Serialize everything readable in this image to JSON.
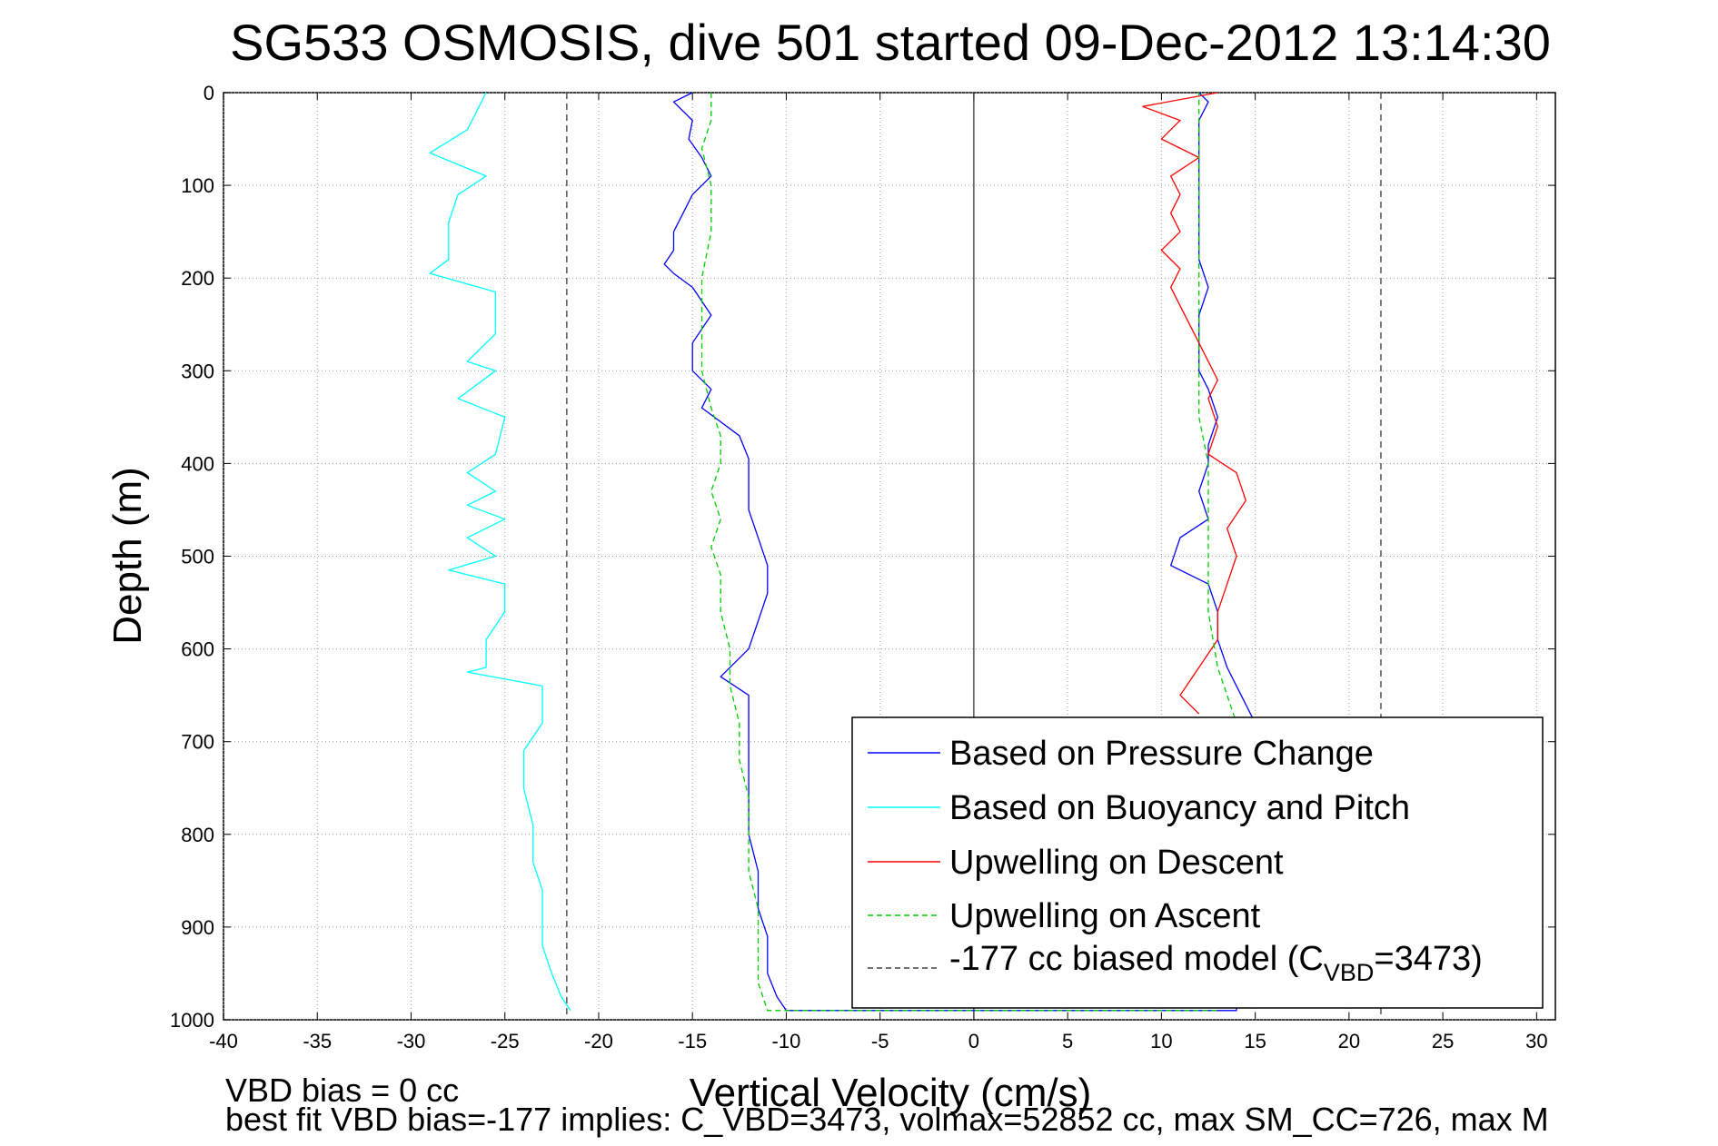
{
  "chart_data": {
    "type": "line",
    "title": "SG533 OSMOSIS, dive 501 started 09-Dec-2012 13:14:30",
    "xlabel": "Vertical Velocity (cm/s)",
    "ylabel": "Depth (m)",
    "xlim": [
      -40,
      31
    ],
    "ylim": [
      0,
      1000
    ],
    "y_reversed": true,
    "grid": true,
    "x_ticks": [
      -40,
      -35,
      -30,
      -25,
      -20,
      -15,
      -10,
      -5,
      0,
      5,
      10,
      15,
      20,
      25,
      30
    ],
    "y_ticks": [
      0,
      100,
      200,
      300,
      400,
      500,
      600,
      700,
      800,
      900,
      1000
    ],
    "legend_position": "lower-right",
    "legend": {
      "pressure": "Based on Pressure Change",
      "buoyancy": "Based on Buoyancy and Pitch",
      "descent": "Upwelling on Descent",
      "ascent": "Upwelling on Ascent",
      "model_prefix": "-177 cc biased model (C",
      "model_sub": "VBD",
      "model_suffix": "=3473)"
    },
    "reference_lines": {
      "zero_line_x": 0,
      "biased_model_x": [
        -21.7,
        21.7
      ]
    },
    "series": [
      {
        "key": "pressure",
        "color": "#0000ff",
        "dash": "",
        "points": [
          [
            -15.0,
            0
          ],
          [
            -16.0,
            10
          ],
          [
            -15.0,
            30
          ],
          [
            -15.2,
            50
          ],
          [
            -14.5,
            70
          ],
          [
            -14.0,
            90
          ],
          [
            -15.0,
            110
          ],
          [
            -15.5,
            130
          ],
          [
            -16.0,
            150
          ],
          [
            -16.0,
            170
          ],
          [
            -16.5,
            185
          ],
          [
            -16.0,
            195
          ],
          [
            -15.0,
            210
          ],
          [
            -14.0,
            240
          ],
          [
            -15.0,
            270
          ],
          [
            -15.0,
            300
          ],
          [
            -14.0,
            320
          ],
          [
            -14.5,
            340
          ],
          [
            -12.5,
            370
          ],
          [
            -12.0,
            395
          ],
          [
            -12.0,
            420
          ],
          [
            -12.0,
            450
          ],
          [
            -11.5,
            480
          ],
          [
            -11.0,
            510
          ],
          [
            -11.0,
            540
          ],
          [
            -11.5,
            570
          ],
          [
            -12.0,
            600
          ],
          [
            -13.5,
            630
          ],
          [
            -12.0,
            650
          ],
          [
            -12.0,
            680
          ],
          [
            -12.0,
            720
          ],
          [
            -12.0,
            760
          ],
          [
            -12.0,
            800
          ],
          [
            -11.5,
            840
          ],
          [
            -11.5,
            880
          ],
          [
            -11.0,
            910
          ],
          [
            -11.0,
            950
          ],
          [
            -10.5,
            975
          ],
          [
            -10.0,
            990
          ],
          [
            14.0,
            990
          ],
          [
            15.0,
            680
          ],
          [
            13.5,
            620
          ],
          [
            13.0,
            590
          ],
          [
            13.0,
            560
          ],
          [
            12.5,
            530
          ],
          [
            10.5,
            510
          ],
          [
            11.0,
            480
          ],
          [
            12.5,
            460
          ],
          [
            12.0,
            430
          ],
          [
            12.5,
            400
          ],
          [
            12.5,
            380
          ],
          [
            13.0,
            350
          ],
          [
            12.5,
            320
          ],
          [
            12.0,
            300
          ],
          [
            12.0,
            270
          ],
          [
            12.0,
            240
          ],
          [
            12.5,
            210
          ],
          [
            12.0,
            180
          ],
          [
            12.0,
            150
          ],
          [
            12.0,
            120
          ],
          [
            12.0,
            90
          ],
          [
            12.0,
            60
          ],
          [
            12.0,
            30
          ],
          [
            12.5,
            10
          ],
          [
            12.0,
            0
          ]
        ]
      },
      {
        "key": "buoyancy",
        "color": "#00ffff",
        "dash": "",
        "points": [
          [
            -26.0,
            0
          ],
          [
            -26.5,
            20
          ],
          [
            -27.0,
            40
          ],
          [
            -29.0,
            65
          ],
          [
            -26.0,
            90
          ],
          [
            -27.5,
            110
          ],
          [
            -28.0,
            140
          ],
          [
            -28.0,
            180
          ],
          [
            -29.0,
            195
          ],
          [
            -25.5,
            215
          ],
          [
            -25.5,
            260
          ],
          [
            -27.0,
            290
          ],
          [
            -25.5,
            300
          ],
          [
            -27.5,
            330
          ],
          [
            -25.0,
            350
          ],
          [
            -25.5,
            390
          ],
          [
            -27.0,
            410
          ],
          [
            -25.5,
            430
          ],
          [
            -27.0,
            445
          ],
          [
            -25.0,
            460
          ],
          [
            -27.0,
            480
          ],
          [
            -25.5,
            500
          ],
          [
            -28.0,
            515
          ],
          [
            -25.0,
            530
          ],
          [
            -25.0,
            560
          ],
          [
            -26.0,
            590
          ],
          [
            -26.0,
            620
          ],
          [
            -27.0,
            625
          ],
          [
            -23.0,
            640
          ],
          [
            -23.0,
            680
          ],
          [
            -24.0,
            710
          ],
          [
            -24.0,
            750
          ],
          [
            -23.5,
            790
          ],
          [
            -23.5,
            830
          ],
          [
            -23.0,
            860
          ],
          [
            -23.0,
            890
          ],
          [
            -23.0,
            920
          ],
          [
            -22.5,
            950
          ],
          [
            -22.0,
            975
          ],
          [
            -21.5,
            990
          ]
        ]
      },
      {
        "key": "descent",
        "color": "#ff0000",
        "dash": "",
        "points": [
          [
            13.0,
            0
          ],
          [
            9.0,
            15
          ],
          [
            11.0,
            30
          ],
          [
            10.0,
            50
          ],
          [
            12.0,
            70
          ],
          [
            10.5,
            90
          ],
          [
            11.0,
            110
          ],
          [
            10.5,
            130
          ],
          [
            11.0,
            150
          ],
          [
            10.0,
            170
          ],
          [
            11.0,
            190
          ],
          [
            10.5,
            210
          ],
          [
            11.0,
            230
          ],
          [
            11.5,
            250
          ],
          [
            12.0,
            270
          ],
          [
            12.5,
            290
          ],
          [
            13.0,
            310
          ],
          [
            12.5,
            330
          ],
          [
            13.0,
            360
          ],
          [
            12.5,
            390
          ],
          [
            14.0,
            410
          ],
          [
            14.5,
            440
          ],
          [
            13.5,
            470
          ],
          [
            14.0,
            500
          ],
          [
            13.5,
            530
          ],
          [
            13.0,
            560
          ],
          [
            13.0,
            590
          ],
          [
            12.0,
            620
          ],
          [
            11.0,
            650
          ],
          [
            12.0,
            670
          ]
        ]
      },
      {
        "key": "ascent",
        "color": "#00cc00",
        "dash": "6,4",
        "points": [
          [
            -14.0,
            0
          ],
          [
            -14.0,
            30
          ],
          [
            -14.5,
            60
          ],
          [
            -14.0,
            100
          ],
          [
            -14.0,
            150
          ],
          [
            -14.5,
            200
          ],
          [
            -14.5,
            250
          ],
          [
            -14.5,
            300
          ],
          [
            -14.0,
            340
          ],
          [
            -13.5,
            370
          ],
          [
            -13.5,
            400
          ],
          [
            -14.0,
            430
          ],
          [
            -13.5,
            460
          ],
          [
            -14.0,
            490
          ],
          [
            -13.5,
            520
          ],
          [
            -13.5,
            560
          ],
          [
            -13.0,
            600
          ],
          [
            -13.0,
            640
          ],
          [
            -12.5,
            680
          ],
          [
            -12.5,
            720
          ],
          [
            -12.0,
            760
          ],
          [
            -12.0,
            800
          ],
          [
            -12.0,
            840
          ],
          [
            -11.5,
            880
          ],
          [
            -11.5,
            920
          ],
          [
            -11.5,
            960
          ],
          [
            -11.0,
            990
          ],
          [
            13.0,
            990
          ],
          [
            14.0,
            680
          ],
          [
            13.0,
            620
          ],
          [
            12.5,
            560
          ],
          [
            12.5,
            500
          ],
          [
            12.5,
            450
          ],
          [
            12.5,
            400
          ],
          [
            12.0,
            350
          ],
          [
            12.0,
            300
          ],
          [
            12.0,
            250
          ],
          [
            12.0,
            200
          ],
          [
            12.0,
            150
          ],
          [
            12.0,
            100
          ],
          [
            12.0,
            50
          ],
          [
            12.0,
            0
          ]
        ]
      }
    ]
  },
  "notes": {
    "vbd_bias": "VBD bias = 0 cc",
    "best_fit": "best fit VBD bias=-177 implies: C_VBD=3473, volmax=52852 cc, max SM_CC=726, max M"
  }
}
